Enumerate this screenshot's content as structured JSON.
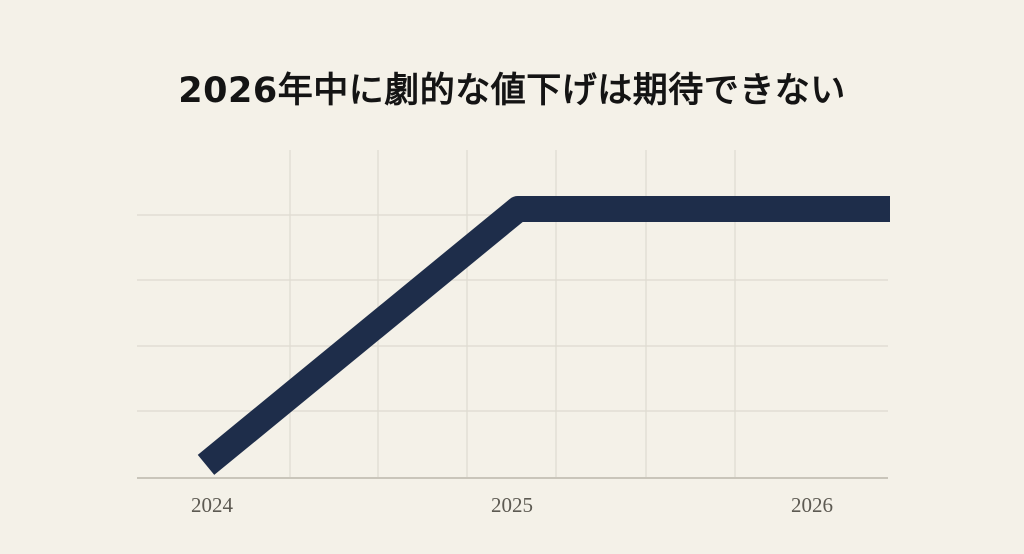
{
  "chart_data": {
    "type": "line",
    "title": "2026年中に劇的な値下げは期待できない",
    "xlabel": "",
    "ylabel": "",
    "x_ticks": [
      {
        "value": 2024,
        "label": "2024"
      },
      {
        "value": 2025,
        "label": "2025"
      },
      {
        "value": 2026,
        "label": "2026"
      }
    ],
    "xlim": [
      2023.75,
      2026.25
    ],
    "ylim": [
      0,
      5
    ],
    "grid": true,
    "series": [
      {
        "x": [
          2023.98,
          2025.02,
          2026.26
        ],
        "y": [
          0.2,
          4.1,
          4.1
        ],
        "color": "#1e2d4a"
      }
    ],
    "colors": {
      "background": "#f4f1e8",
      "grid": "#dedad0",
      "axis": "#c9c5ba",
      "line": "#1e2d4a"
    }
  }
}
